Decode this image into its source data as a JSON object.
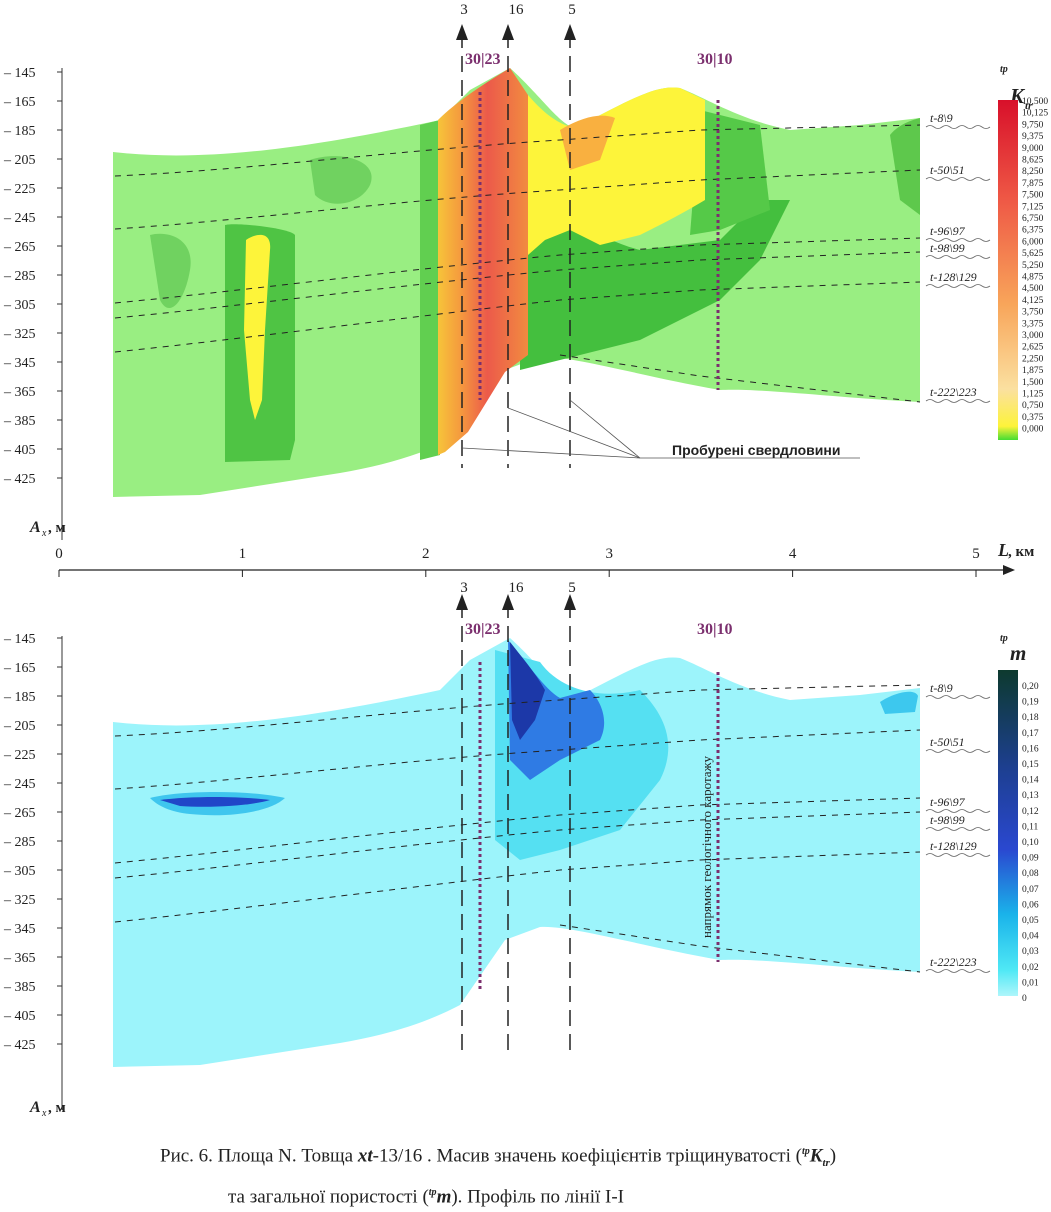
{
  "panel_top": {
    "depth_ticks": [
      "– 145",
      "– 165",
      "– 185",
      "– 205",
      "– 225",
      "– 245",
      "– 265",
      "– 285",
      "– 305",
      "– 325",
      "– 345",
      "– 365",
      "– 385",
      "– 405",
      "– 425"
    ],
    "y_axis_label": "A",
    "y_axis_sub": "x",
    "y_axis_unit": ", м",
    "wells": [
      "3",
      "16",
      "5"
    ],
    "log_marks": [
      "30|23",
      "30|10"
    ],
    "horizons": [
      "t-8\\9",
      "t-50\\51",
      "t-96\\97",
      "t-98\\99",
      "t-128\\129",
      "t-222\\223"
    ],
    "legend_title_sup": "tp",
    "legend_title_main": "K",
    "legend_title_sub": "tr",
    "legend_values": [
      "10,500",
      "10,125",
      "9,750",
      "9,375",
      "9,000",
      "8,625",
      "8,250",
      "7,875",
      "7,500",
      "7,125",
      "6,750",
      "6,375",
      "6,000",
      "5,625",
      "5,250",
      "4,875",
      "4,500",
      "4,125",
      "3,750",
      "3,375",
      "3,000",
      "2,625",
      "2,250",
      "1,875",
      "1,500",
      "1,125",
      "0,750",
      "0,375",
      "0,000"
    ],
    "annotation": "Пробурені свердловини"
  },
  "x_axis": {
    "ticks": [
      "0",
      "1",
      "2",
      "3",
      "4",
      "5"
    ],
    "label": "L",
    "unit": ", км"
  },
  "panel_bottom": {
    "depth_ticks": [
      "– 145",
      "– 165",
      "– 185",
      "– 205",
      "– 225",
      "– 245",
      "– 265",
      "– 285",
      "– 305",
      "– 325",
      "– 345",
      "– 365",
      "– 385",
      "– 405",
      "– 425"
    ],
    "y_axis_label": "A",
    "y_axis_sub": "x",
    "y_axis_unit": ", м",
    "wells": [
      "3",
      "16",
      "5"
    ],
    "log_marks": [
      "30|23",
      "30|10"
    ],
    "horizons": [
      "t-8\\9",
      "t-50\\51",
      "t-96\\97",
      "t-98\\99",
      "t-128\\129",
      "t-222\\223"
    ],
    "legend_title_sup": "tp",
    "legend_title_main": "m",
    "legend_values": [
      "0,20",
      "0,19",
      "0,18",
      "0,17",
      "0,16",
      "0,15",
      "0,14",
      "0,13",
      "0,12",
      "0,11",
      "0,10",
      "0,09",
      "0,08",
      "0,07",
      "0,06",
      "0,05",
      "0,04",
      "0,03",
      "0,02",
      "0,01",
      "0"
    ],
    "vertical_note": "напрямок геологічного каротажу"
  },
  "caption": {
    "line1_a": "Рис. 6. Площа N. Товща ",
    "line1_b": "xt",
    "line1_c": "-13/16 . Масив значень коефіцієнтів тріщинуватості (",
    "line1_d": "tp",
    "line1_e": "K",
    "line1_f": "tr",
    "line1_g": ")",
    "line2_a": "та загальної пористості (",
    "line2_b": "tp",
    "line2_c": "m",
    "line2_d": "). Профіль по лінії І-І"
  },
  "colors": {
    "top_base": "#99ee82",
    "top_green": "#55c845",
    "top_yellow": "#fdf43a",
    "top_orange": "#f9a838",
    "top_red": "#ec5a4a",
    "bottom_base": "#9cf4fb",
    "bottom_cyan": "#2fd7f0",
    "bottom_blue": "#1f4fd8",
    "bottom_navy": "#12307a",
    "log_mark": "#7b2f6e"
  }
}
